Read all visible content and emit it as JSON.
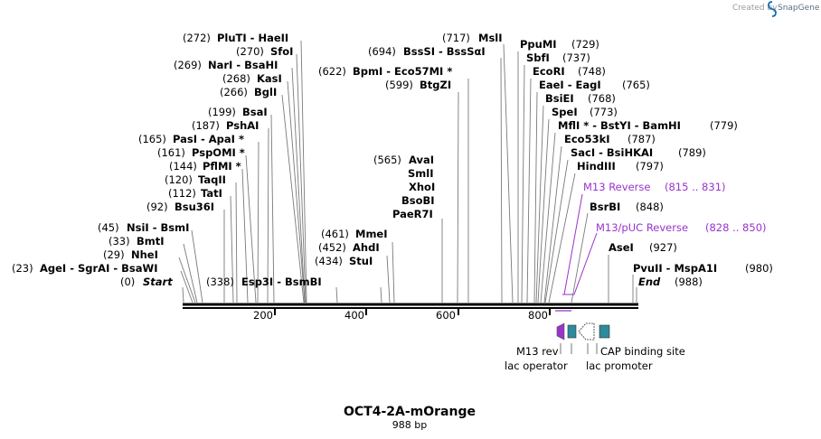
{
  "credit": {
    "created_by": "Created by",
    "brand": "SnapGene"
  },
  "sequence": {
    "name": "OCT4-2A-mOrange",
    "length_label": "988 bp",
    "length": 988
  },
  "axis": {
    "ticks": [
      "200",
      "400",
      "600",
      "800"
    ]
  },
  "colors": {
    "feature_line": "#9933cc",
    "lac_operator": "#2e8b9a",
    "cap_site": "#2e8b9a",
    "m13_rev": "#9933cc"
  },
  "sites": [
    {
      "name": "AgeI - SgrAI - BsaWI",
      "pos": "(23)"
    },
    {
      "name": "NheI",
      "pos": "(29)"
    },
    {
      "name": "BmtI",
      "pos": "(33)"
    },
    {
      "name": "NsiI - BsmI",
      "pos": "(45)"
    },
    {
      "name": "Bsu36I",
      "pos": "(92)"
    },
    {
      "name": "TatI",
      "pos": "(112)"
    },
    {
      "name": "TaqII",
      "pos": "(120)"
    },
    {
      "name": "PflMI *",
      "pos": "(144)"
    },
    {
      "name": "PspOMI *",
      "pos": "(161)"
    },
    {
      "name": "PasI - ApaI *",
      "pos": "(165)"
    },
    {
      "name": "PshAI",
      "pos": "(187)"
    },
    {
      "name": "BsaI",
      "pos": "(199)"
    },
    {
      "name": "BglI",
      "pos": "(266)"
    },
    {
      "name": "KasI",
      "pos": "(268)"
    },
    {
      "name": "NarI - BsaHI",
      "pos": "(269)"
    },
    {
      "name": "SfoI",
      "pos": "(270)"
    },
    {
      "name": "PluTI - HaeII",
      "pos": "(272)"
    },
    {
      "name": "Esp3I - BsmBI",
      "pos": "(338)"
    },
    {
      "name": "StuI",
      "pos": "(434)"
    },
    {
      "name": "AhdI",
      "pos": "(452)"
    },
    {
      "name": "MmeI",
      "pos": "(461)"
    },
    {
      "name": "AvaI",
      "pos": "(565)"
    },
    {
      "name": "SmlI",
      "pos": ""
    },
    {
      "name": "XhoI",
      "pos": ""
    },
    {
      "name": "BsoBI",
      "pos": ""
    },
    {
      "name": "PaeR7I",
      "pos": ""
    },
    {
      "name": "BtgZI",
      "pos": "(599)"
    },
    {
      "name": "BpmI - Eco57MI *",
      "pos": "(622)"
    },
    {
      "name": "BssSI - BssSαI",
      "pos": "(694)"
    },
    {
      "name": "MslI",
      "pos": "(717)"
    },
    {
      "name": "PpuMI",
      "pos": "(729)"
    },
    {
      "name": "SbfI",
      "pos": "(737)"
    },
    {
      "name": "EcoRI",
      "pos": "(748)"
    },
    {
      "name": "EaeI - EagI",
      "pos": "(765)"
    },
    {
      "name": "BsiEI",
      "pos": "(768)"
    },
    {
      "name": "SpeI",
      "pos": "(773)"
    },
    {
      "name": "MflI * - BstYI - BamHI",
      "pos": "(779)"
    },
    {
      "name": "Eco53kI",
      "pos": "(787)"
    },
    {
      "name": "SacI - BsiHKAI",
      "pos": "(789)"
    },
    {
      "name": "HindIII",
      "pos": "(797)"
    },
    {
      "name": "BsrBI",
      "pos": "(848)"
    },
    {
      "name": "AseI",
      "pos": "(927)"
    },
    {
      "name": "PvuII - MspA1I",
      "pos": "(980)"
    }
  ],
  "ends": {
    "start_label": "Start",
    "start_pos": "(0)",
    "end_label": "End",
    "end_pos": "(988)"
  },
  "primers": [
    {
      "name": "M13 Reverse",
      "range": "(815 .. 831)"
    },
    {
      "name": "M13/pUC Reverse",
      "range": "(828 .. 850)"
    }
  ],
  "features": [
    {
      "name": "M13 rev",
      "icon": "primer-arrow-icon"
    },
    {
      "name": "lac operator",
      "icon": "lac-operator-box-icon"
    },
    {
      "name": "lac promoter",
      "icon": "lac-promoter-arrow-icon"
    },
    {
      "name": "CAP binding site",
      "icon": "cap-binding-box-icon"
    }
  ]
}
